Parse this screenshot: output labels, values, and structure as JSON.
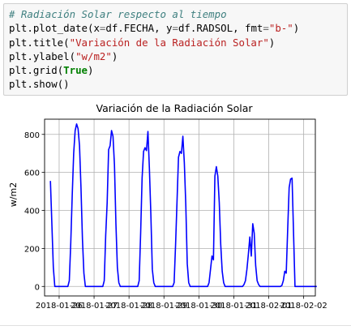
{
  "code": {
    "comment": "# Radiación Solar respecto al tiempo",
    "l2": {
      "fn": "plt.plot_date",
      "open": "(",
      "a1": "x",
      "eq1": "=",
      "v1": "df.FECHA",
      "sep1": ", ",
      "a2": "y",
      "eq2": "=",
      "v2": "df.RADSOL",
      "sep2": ", ",
      "a3": "fmt",
      "eq3": "=",
      "v3": "\"b-\"",
      "close": ")"
    },
    "l3": {
      "fn": "plt.title",
      "open": "(",
      "arg": "\"Variación de la Radiación Solar\"",
      "close": ")"
    },
    "l4": {
      "fn": "plt.ylabel",
      "open": "(",
      "arg": "\"w/m2\"",
      "close": ")"
    },
    "l5": {
      "fn": "plt.grid",
      "open": "(",
      "arg": "True",
      "close": ")"
    },
    "l6": {
      "fn": "plt.show",
      "open": "(",
      "close": ")"
    }
  },
  "chart_data": {
    "type": "line",
    "title": "Variación de la Radiación Solar",
    "xlabel": "",
    "ylabel": "w/m2",
    "xlim": [
      "2018-01-25T14:00",
      "2018-02-02T08:00"
    ],
    "ylim": [
      -50,
      880
    ],
    "yticks": [
      0,
      200,
      400,
      600,
      800
    ],
    "xticks": [
      "2018-01-26",
      "2018-01-27",
      "2018-01-28",
      "2018-01-29",
      "2018-01-30",
      "2018-01-31",
      "2018-02-01",
      "2018-02-02"
    ],
    "grid": true,
    "color": "#0000ff",
    "series": [
      {
        "x": [
          "2018-01-25T18:00",
          "2018-01-25T20:00",
          "2018-01-25T21:00",
          "2018-01-25T22:00",
          "2018-01-26T06:00",
          "2018-01-26T07:00",
          "2018-01-26T08:00",
          "2018-01-26T09:00",
          "2018-01-26T10:00",
          "2018-01-26T11:00",
          "2018-01-26T12:00",
          "2018-01-26T13:00",
          "2018-01-26T14:00",
          "2018-01-26T15:00",
          "2018-01-26T16:00",
          "2018-01-26T17:00",
          "2018-01-26T18:00",
          "2018-01-27T06:00",
          "2018-01-27T07:00",
          "2018-01-27T08:00",
          "2018-01-27T09:00",
          "2018-01-27T10:00",
          "2018-01-27T11:00",
          "2018-01-27T12:00",
          "2018-01-27T13:00",
          "2018-01-27T14:00",
          "2018-01-27T15:00",
          "2018-01-27T16:00",
          "2018-01-27T17:00",
          "2018-01-27T18:00",
          "2018-01-28T06:00",
          "2018-01-28T07:00",
          "2018-01-28T08:00",
          "2018-01-28T09:00",
          "2018-01-28T10:00",
          "2018-01-28T11:00",
          "2018-01-28T12:00",
          "2018-01-28T13:00",
          "2018-01-28T14:00",
          "2018-01-28T15:00",
          "2018-01-28T16:00",
          "2018-01-28T17:00",
          "2018-01-28T18:00",
          "2018-01-29T06:00",
          "2018-01-29T07:00",
          "2018-01-29T08:00",
          "2018-01-29T09:00",
          "2018-01-29T10:00",
          "2018-01-29T11:00",
          "2018-01-29T12:00",
          "2018-01-29T13:00",
          "2018-01-29T14:00",
          "2018-01-29T15:00",
          "2018-01-29T16:00",
          "2018-01-29T17:00",
          "2018-01-29T18:00",
          "2018-01-30T06:00",
          "2018-01-30T07:00",
          "2018-01-30T08:00",
          "2018-01-30T09:00",
          "2018-01-30T10:00",
          "2018-01-30T11:00",
          "2018-01-30T12:00",
          "2018-01-30T13:00",
          "2018-01-30T14:00",
          "2018-01-30T15:00",
          "2018-01-30T16:00",
          "2018-01-30T17:00",
          "2018-01-30T18:00",
          "2018-01-31T06:00",
          "2018-01-31T07:00",
          "2018-01-31T08:00",
          "2018-01-31T09:00",
          "2018-01-31T10:00",
          "2018-01-31T11:00",
          "2018-01-31T12:00",
          "2018-01-31T13:00",
          "2018-01-31T14:00",
          "2018-01-31T15:00",
          "2018-01-31T16:00",
          "2018-01-31T17:00",
          "2018-01-31T18:00",
          "2018-02-01T06:00",
          "2018-02-01T08:00",
          "2018-02-01T09:00",
          "2018-02-01T10:00",
          "2018-02-01T11:00",
          "2018-02-01T12:00",
          "2018-02-01T13:00",
          "2018-02-01T14:00",
          "2018-02-01T15:00",
          "2018-02-01T16:00",
          "2018-02-01T18:00",
          "2018-02-02T06:00",
          "2018-02-02T07:00",
          "2018-02-02T08:00",
          "2018-02-02T08:30",
          "2018-02-02T09:00"
        ],
        "y": [
          555,
          100,
          0,
          0,
          0,
          30,
          230,
          480,
          700,
          820,
          855,
          830,
          740,
          520,
          250,
          70,
          0,
          0,
          30,
          270,
          440,
          720,
          740,
          820,
          790,
          640,
          330,
          100,
          20,
          0,
          0,
          30,
          280,
          570,
          710,
          730,
          715,
          815,
          620,
          380,
          90,
          20,
          0,
          0,
          20,
          220,
          450,
          680,
          710,
          700,
          790,
          650,
          430,
          120,
          20,
          0,
          0,
          20,
          90,
          160,
          140,
          580,
          630,
          580,
          440,
          220,
          80,
          20,
          0,
          0,
          10,
          30,
          90,
          170,
          260,
          160,
          330,
          280,
          110,
          30,
          10,
          0,
          0,
          0,
          5,
          30,
          80,
          70,
          300,
          520,
          565,
          570,
          0,
          0,
          0,
          0,
          0,
          0
        ]
      }
    ]
  }
}
